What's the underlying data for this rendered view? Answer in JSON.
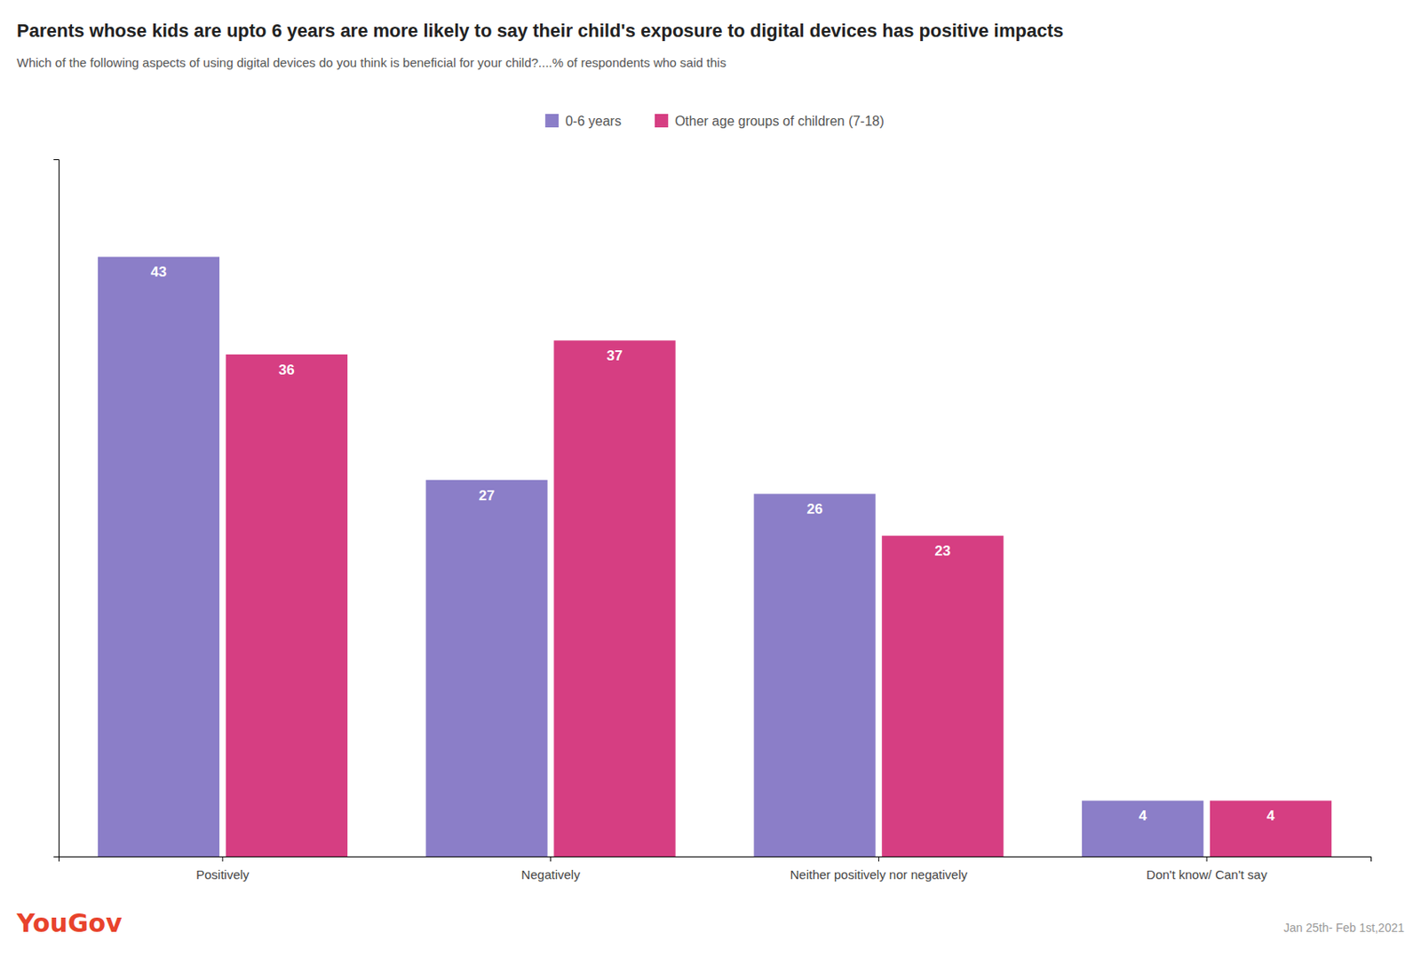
{
  "chart_data": {
    "type": "bar",
    "title": "Parents whose kids are upto 6 years are more likely to say their child's exposure to digital devices has positive impacts",
    "subtitle": "Which of the following aspects of using digital devices do you think is beneficial for your child?....% of respondents who said this",
    "categories": [
      "Positively",
      "Negatively",
      "Neither positively nor negatively",
      "Don't know/ Can't say"
    ],
    "series": [
      {
        "name": "0-6 years",
        "color": "#8B7EC8",
        "values": [
          43,
          27,
          26,
          4
        ]
      },
      {
        "name": "Other age groups of children (7-18)",
        "color": "#D63E82",
        "values": [
          36,
          37,
          23,
          4
        ]
      }
    ],
    "ylim": [
      0,
      50
    ],
    "grid": false,
    "legend": "top",
    "data_labels": true,
    "tick_labels": "x",
    "annotations": [
      {
        "text": "YouGov",
        "color": "#E8432C"
      },
      {
        "text": "Jan 25th- Feb 1st,2021"
      }
    ]
  }
}
